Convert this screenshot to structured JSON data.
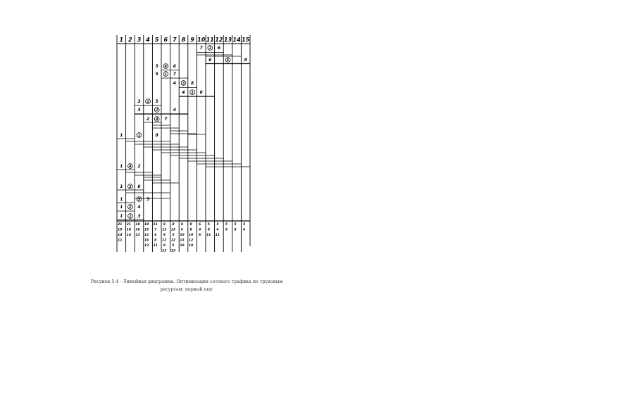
{
  "diagram": {
    "columns": [
      "1",
      "2",
      "3",
      "4",
      "5",
      "6",
      "7",
      "8",
      "9",
      "10",
      "11",
      "12",
      "13",
      "14",
      "15"
    ],
    "rows": [
      {
        "cells": [
          {
            "col": 10,
            "text": "7"
          },
          {
            "col": 11,
            "text": "1",
            "circled": true
          },
          {
            "col": 12,
            "text": "6"
          }
        ]
      },
      {
        "cells": [
          {
            "col": 11,
            "text": "6"
          },
          {
            "col": 13,
            "text": "5",
            "circled": true
          },
          {
            "col": 15,
            "text": "8"
          }
        ]
      },
      {
        "cells": [
          {
            "col": 5,
            "text": "5"
          },
          {
            "col": 6,
            "text": "4",
            "circled": true
          },
          {
            "col": 7,
            "text": "6"
          }
        ]
      },
      {
        "cells": [
          {
            "col": 5,
            "text": "5"
          },
          {
            "col": 6,
            "text": "1",
            "circled": true
          },
          {
            "col": 7,
            "text": "7"
          }
        ]
      },
      {
        "cells": [
          {
            "col": 7,
            "text": "4"
          },
          {
            "col": 8,
            "text": "3",
            "circled": true
          },
          {
            "col": 9,
            "text": "8"
          }
        ]
      },
      {
        "cells": [
          {
            "col": 8,
            "text": "4"
          },
          {
            "col": 9,
            "text": "1",
            "circled": true
          },
          {
            "col": 10,
            "text": "6"
          }
        ]
      },
      {
        "cells": [
          {
            "col": 3,
            "text": "3"
          },
          {
            "col": 4,
            "text": "2",
            "circled": true
          },
          {
            "col": 5,
            "text": "5"
          }
        ]
      },
      {
        "cells": [
          {
            "col": 3,
            "text": "3"
          },
          {
            "col": 5,
            "text": "2",
            "circled": true
          },
          {
            "col": 7,
            "text": "4"
          }
        ]
      },
      {
        "cells": [
          {
            "col": 4,
            "text": "2"
          },
          {
            "col": 5,
            "text": "4",
            "circled": true
          },
          {
            "col": 6,
            "text": "7"
          }
        ]
      },
      {
        "cells": [
          {
            "col": 1,
            "text": "1"
          },
          {
            "col": 3,
            "text": "1",
            "circled": true
          },
          {
            "col": 5,
            "text": "8"
          }
        ]
      },
      {
        "cells": [
          {
            "col": 1,
            "text": "1"
          },
          {
            "col": 2,
            "text": "4",
            "circled": true
          },
          {
            "col": 3,
            "text": "2"
          }
        ]
      },
      {
        "cells": [
          {
            "col": 1,
            "text": "1"
          },
          {
            "col": 2,
            "text": "3",
            "circled": true
          },
          {
            "col": 3,
            "text": "6"
          }
        ]
      },
      {
        "cells": [
          {
            "col": 1,
            "text": "1"
          },
          {
            "col": 3,
            "text": "5",
            "circled": true
          },
          {
            "col": 4,
            "text": "5"
          }
        ]
      },
      {
        "cells": [
          {
            "col": 1,
            "text": "1"
          },
          {
            "col": 2,
            "text": "2",
            "circled": true
          },
          {
            "col": 3,
            "text": "4"
          }
        ]
      },
      {
        "cells": [
          {
            "col": 1,
            "text": "1"
          },
          {
            "col": 2,
            "text": "1",
            "circled": true
          },
          {
            "col": 3,
            "text": "3"
          }
        ]
      }
    ],
    "totals": [
      [
        "21",
        "19",
        "14",
        "11"
      ],
      [
        "21",
        "18",
        "14"
      ],
      [
        "19",
        "16",
        "13"
      ],
      [
        "18",
        "15",
        "12",
        "16",
        "12"
      ],
      [
        "11",
        "7",
        "4",
        "8",
        "11"
      ],
      [
        "9",
        "13",
        "9",
        "12",
        "9",
        "13"
      ],
      [
        "8",
        "13",
        "5",
        "12",
        "5",
        "13"
      ],
      [
        "9",
        "6",
        "10",
        "13",
        "10"
      ],
      [
        "8",
        "8",
        "10",
        "12",
        "10"
      ],
      [
        "6",
        "9",
        "6"
      ],
      [
        "5",
        "8",
        "11"
      ],
      [
        "5",
        "6",
        "11"
      ],
      [
        "5",
        "8"
      ],
      [
        "5",
        "8"
      ],
      [
        "5",
        "6"
      ]
    ]
  },
  "caption": {
    "line1": "Рисунок 5.4 - Линейная диаграмма. Оптимизация сетевого графика по трудовым",
    "line2": "ресурсам: первый шаг"
  }
}
